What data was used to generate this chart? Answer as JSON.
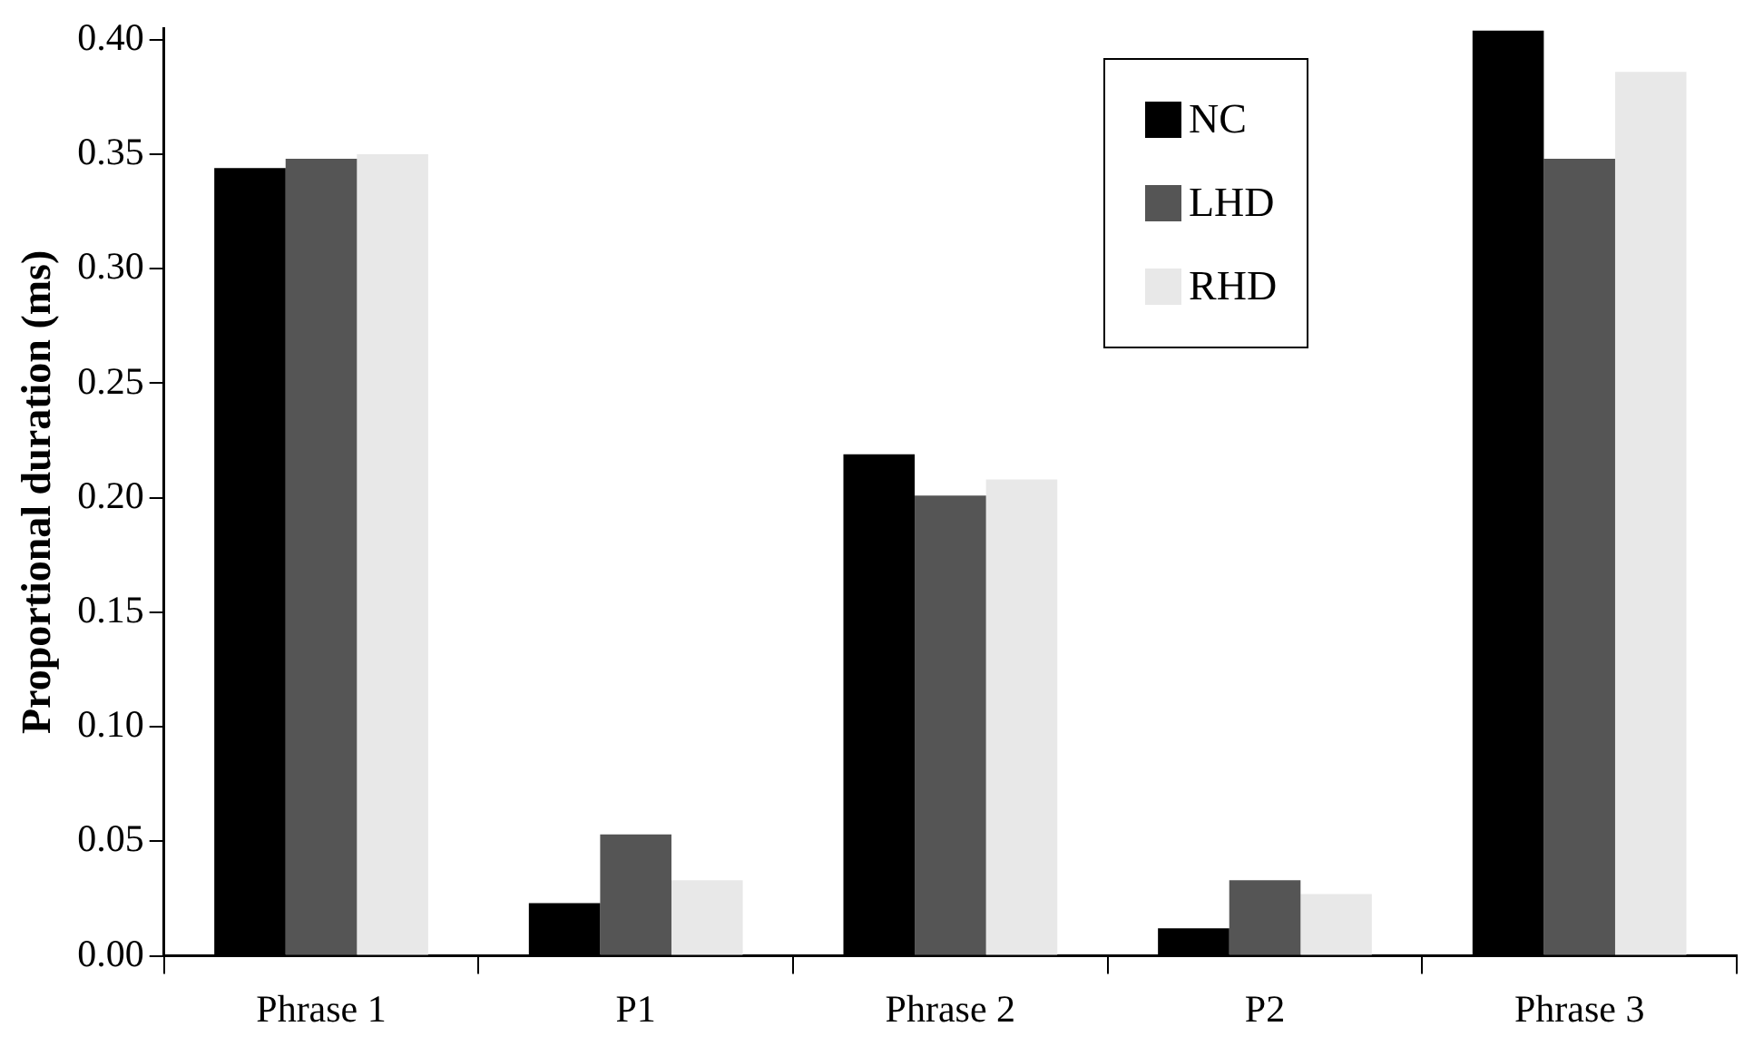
{
  "chart_data": {
    "type": "bar",
    "ylabel": "Proportional duration (ms)",
    "categories": [
      "Phrase 1",
      "P1",
      "Phrase 2",
      "P2",
      "Phrase 3"
    ],
    "series": [
      {
        "name": "NC",
        "color": "#000000",
        "values": [
          0.344,
          0.023,
          0.219,
          0.012,
          0.404
        ]
      },
      {
        "name": "LHD",
        "color": "#555555",
        "values": [
          0.348,
          0.053,
          0.201,
          0.033,
          0.348
        ]
      },
      {
        "name": "RHD",
        "color": "#e8e8e8",
        "values": [
          0.35,
          0.033,
          0.208,
          0.027,
          0.386
        ]
      }
    ],
    "ylim": [
      0,
      0.405
    ],
    "yticks": [
      {
        "value": 0,
        "label": "0.00"
      },
      {
        "value": 0.05,
        "label": "0.05"
      },
      {
        "value": 0.1,
        "label": "0.10"
      },
      {
        "value": 0.15,
        "label": "0.15"
      },
      {
        "value": 0.2,
        "label": "0.20"
      },
      {
        "value": 0.25,
        "label": "0.25"
      },
      {
        "value": 0.3,
        "label": "0.30"
      },
      {
        "value": 0.35,
        "label": "0.35"
      },
      {
        "value": 0.4,
        "label": "0.40"
      }
    ],
    "grid": false,
    "legend": "top right"
  }
}
